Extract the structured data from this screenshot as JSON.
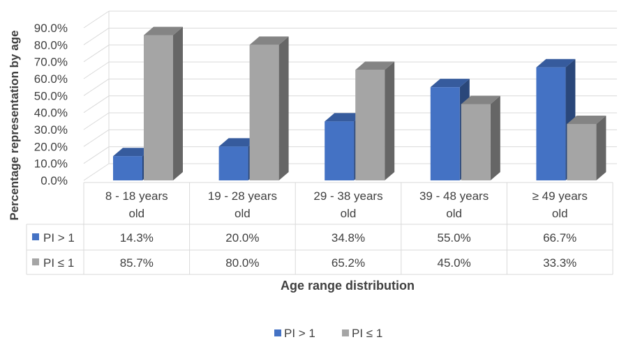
{
  "chart_data": {
    "type": "bar",
    "categories": [
      "8 - 18 years old",
      "19 - 28 years old",
      "29 - 38 years old",
      "39 - 48 years old",
      "≥ 49 years old"
    ],
    "category_lines": [
      [
        "8 - 18 years",
        "old"
      ],
      [
        "19 - 28 years",
        "old"
      ],
      [
        "29 - 38 years",
        "old"
      ],
      [
        "39 - 48 years",
        "old"
      ],
      [
        "≥ 49 years",
        "old"
      ]
    ],
    "series": [
      {
        "name": "PI > 1",
        "values": [
          14.3,
          20.0,
          34.8,
          55.0,
          66.7
        ],
        "labels": [
          "14.3%",
          "20.0%",
          "34.8%",
          "55.0%",
          "66.7%"
        ],
        "color": "#4472c4"
      },
      {
        "name": "PI ≤ 1",
        "values": [
          85.7,
          80.0,
          65.2,
          45.0,
          33.3
        ],
        "labels": [
          "85.7%",
          "80.0%",
          "65.2%",
          "45.0%",
          "33.3%"
        ],
        "color": "#a5a5a5"
      }
    ],
    "ylim": [
      0,
      90
    ],
    "yticks": [
      "0.0%",
      "10.0%",
      "20.0%",
      "30.0%",
      "40.0%",
      "50.0%",
      "60.0%",
      "70.0%",
      "80.0%",
      "90.0%"
    ],
    "ylabel": "Percentage representation by age",
    "xlabel": "Age range distribution",
    "legend_position": "bottom",
    "data_table": true,
    "grid": true
  }
}
